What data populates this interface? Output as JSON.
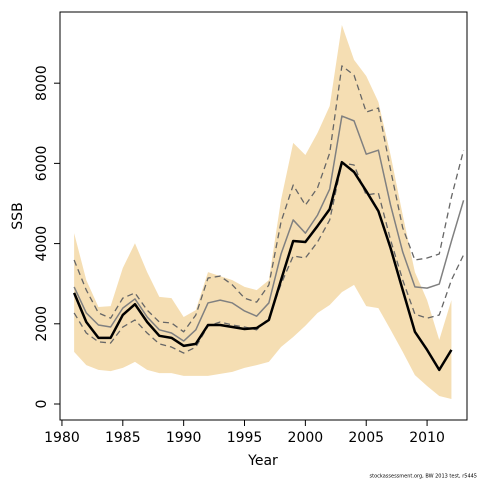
{
  "chart_data": {
    "type": "line",
    "x_label": "Year",
    "y_label": "SSB",
    "footnote": "stockassessment.org, BW 2013 test, r5445",
    "x": [
      1981,
      1982,
      1983,
      1984,
      1985,
      1986,
      1987,
      1988,
      1989,
      1990,
      1991,
      1992,
      1993,
      1994,
      1995,
      1996,
      1997,
      1998,
      1999,
      2000,
      2001,
      2002,
      2003,
      2004,
      2005,
      2006,
      2007,
      2008,
      2009,
      2010,
      2011,
      2012,
      2013
    ],
    "band": {
      "color": "#f5deb3",
      "upper": [
        4260,
        3090,
        2420,
        2440,
        3390,
        4010,
        3290,
        2670,
        2640,
        2170,
        2340,
        3290,
        3190,
        3090,
        2920,
        2840,
        3090,
        5090,
        6510,
        6210,
        6760,
        7430,
        9450,
        8580,
        8180,
        7530,
        6210,
        4710,
        3290,
        2590,
        1600,
        2590,
        null
      ],
      "lower": [
        1300,
        970,
        850,
        820,
        900,
        1050,
        850,
        770,
        770,
        700,
        700,
        700,
        750,
        800,
        900,
        970,
        1050,
        1420,
        1670,
        1950,
        2270,
        2470,
        2790,
        2970,
        2440,
        2390,
        1850,
        1300,
        720,
        450,
        200,
        125,
        null
      ]
    },
    "series": [
      {
        "color": "#666666",
        "dashed": true,
        "width": 1.3,
        "values": [
          3590,
          2840,
          2270,
          2140,
          2640,
          2770,
          2340,
          2045,
          2020,
          1800,
          2220,
          3140,
          3190,
          2970,
          2640,
          2540,
          2970,
          4540,
          5460,
          4960,
          5390,
          6260,
          8430,
          8200,
          7280,
          7380,
          5840,
          4390,
          3590,
          3640,
          3740,
          5160,
          6330
        ]
      },
      {
        "color": "#666666",
        "dashed": true,
        "width": 1.3,
        "values": [
          2270,
          1770,
          1550,
          1520,
          1920,
          2095,
          1770,
          1500,
          1420,
          1270,
          1420,
          1945,
          2045,
          1970,
          1920,
          1850,
          2140,
          2990,
          3690,
          3640,
          4040,
          4590,
          6010,
          5960,
          5210,
          5260,
          4090,
          3090,
          2240,
          2140,
          2220,
          3090,
          3720
        ]
      },
      {
        "color": "#808080",
        "dashed": false,
        "width": 1.5,
        "values": [
          2920,
          2270,
          1970,
          1920,
          2390,
          2620,
          2170,
          1850,
          1770,
          1570,
          1850,
          2520,
          2590,
          2520,
          2320,
          2190,
          2520,
          3740,
          4590,
          4260,
          4710,
          5360,
          7180,
          7060,
          6230,
          6330,
          4960,
          3790,
          2920,
          2890,
          2990,
          4060,
          5080
        ]
      },
      {
        "color": "#000000",
        "dashed": false,
        "width": 2.5,
        "values": [
          2770,
          2045,
          1650,
          1650,
          2220,
          2490,
          2045,
          1700,
          1650,
          1450,
          1500,
          1970,
          1970,
          1920,
          1870,
          1895,
          2095,
          3090,
          4065,
          4040,
          4440,
          4860,
          6030,
          5785,
          5310,
          4810,
          3890,
          2840,
          1800,
          1350,
          850,
          1350,
          null
        ]
      }
    ],
    "xlim": [
      1979.84,
      2013.28
    ],
    "ylim": [
      -399,
      9775
    ],
    "xticks": [
      1980,
      1985,
      1990,
      1995,
      2000,
      2005,
      2010
    ],
    "yticks": [
      0,
      2000,
      4000,
      6000,
      8000
    ]
  }
}
